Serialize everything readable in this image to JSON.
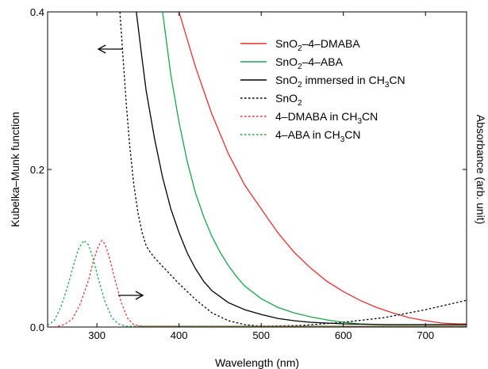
{
  "chart_data": {
    "type": "line",
    "xlabel": "Wavelength (nm)",
    "ylabel_left": "Kubelka–Munk function",
    "ylabel_right": "Absorbance (arb. unit)",
    "xlim": [
      240,
      750
    ],
    "ylim": [
      0,
      0.4
    ],
    "x_ticks": [
      300,
      400,
      500,
      600,
      700
    ],
    "y_ticks": [
      0.0,
      0.2,
      0.4
    ],
    "y_tick_labels": [
      "0.0",
      "0.2",
      "0.4"
    ],
    "grid": false,
    "legend_position": "top-right",
    "annotations": [
      {
        "type": "arrow",
        "direction": "left",
        "meaning": "left axis"
      },
      {
        "type": "arrow",
        "direction": "right",
        "meaning": "right axis"
      }
    ],
    "series": [
      {
        "legend": [
          "SnO",
          "2",
          "–4–DMABA"
        ],
        "color": "#e8312f",
        "dash": "solid",
        "x": [
          400,
          420,
          440,
          460,
          480,
          500,
          520,
          540,
          560,
          580,
          600,
          620,
          640,
          660,
          680,
          700,
          720,
          740,
          750
        ],
        "y": [
          0.4,
          0.33,
          0.27,
          0.22,
          0.18,
          0.15,
          0.12,
          0.095,
          0.075,
          0.058,
          0.045,
          0.034,
          0.025,
          0.018,
          0.012,
          0.008,
          0.005,
          0.004,
          0.004
        ]
      },
      {
        "legend": [
          "SnO",
          "2",
          "–4–ABA"
        ],
        "color": "#1aa64b",
        "dash": "solid",
        "x": [
          380,
          390,
          400,
          410,
          420,
          430,
          440,
          450,
          460,
          470,
          480,
          500,
          520,
          540,
          560,
          580,
          600,
          620,
          650,
          700,
          750
        ],
        "y": [
          0.4,
          0.32,
          0.26,
          0.21,
          0.17,
          0.14,
          0.115,
          0.095,
          0.078,
          0.064,
          0.052,
          0.036,
          0.025,
          0.018,
          0.013,
          0.009,
          0.006,
          0.004,
          0.003,
          0.003,
          0.003
        ]
      },
      {
        "legend": [
          "SnO",
          "2",
          " immersed in CH",
          "3",
          "CN"
        ],
        "color": "#000000",
        "dash": "solid",
        "x": [
          348,
          355,
          360,
          370,
          380,
          390,
          400,
          410,
          420,
          430,
          440,
          460,
          480,
          500,
          520,
          540,
          560,
          600,
          650,
          700,
          750
        ],
        "y": [
          0.4,
          0.34,
          0.3,
          0.24,
          0.19,
          0.15,
          0.12,
          0.094,
          0.074,
          0.058,
          0.046,
          0.031,
          0.022,
          0.016,
          0.011,
          0.008,
          0.006,
          0.004,
          0.003,
          0.003,
          0.003
        ]
      },
      {
        "legend": [
          "SnO",
          "2"
        ],
        "color": "#000000",
        "dash": "dotted",
        "x": [
          328,
          332,
          336,
          340,
          345,
          350,
          355,
          360,
          365,
          370,
          380,
          400,
          420,
          440,
          460,
          480,
          500,
          550,
          600,
          650,
          700,
          750
        ],
        "y": [
          0.4,
          0.34,
          0.28,
          0.23,
          0.18,
          0.145,
          0.12,
          0.103,
          0.095,
          0.088,
          0.077,
          0.055,
          0.035,
          0.018,
          0.008,
          0.003,
          0.001,
          0.002,
          0.006,
          0.012,
          0.022,
          0.034
        ]
      },
      {
        "legend": [
          "4–DMABA in CH",
          "3",
          "CN"
        ],
        "color": "#e8312f",
        "dash": "dotted",
        "x": [
          248,
          260,
          270,
          280,
          290,
          296,
          302,
          306,
          310,
          316,
          322,
          330,
          338,
          345,
          355,
          370,
          400,
          500,
          600,
          700,
          750
        ],
        "y": [
          0,
          0.003,
          0.01,
          0.03,
          0.06,
          0.085,
          0.103,
          0.11,
          0.105,
          0.085,
          0.06,
          0.03,
          0.01,
          0.003,
          0.001,
          0.001,
          0.001,
          0.001,
          0.001,
          0.001,
          0.001
        ]
      },
      {
        "legend": [
          "4–ABA in CH",
          "3",
          "CN"
        ],
        "color": "#1aa64b",
        "dash": "dotted",
        "x": [
          240,
          248,
          256,
          264,
          272,
          278,
          284,
          290,
          296,
          302,
          310,
          318,
          326,
          335,
          345,
          360,
          400,
          500,
          600,
          700,
          750
        ],
        "y": [
          0.002,
          0.008,
          0.025,
          0.05,
          0.08,
          0.1,
          0.11,
          0.104,
          0.085,
          0.06,
          0.032,
          0.012,
          0.004,
          0.001,
          0.001,
          0.001,
          0.001,
          0.001,
          0.001,
          0.001,
          0.001
        ]
      }
    ]
  }
}
